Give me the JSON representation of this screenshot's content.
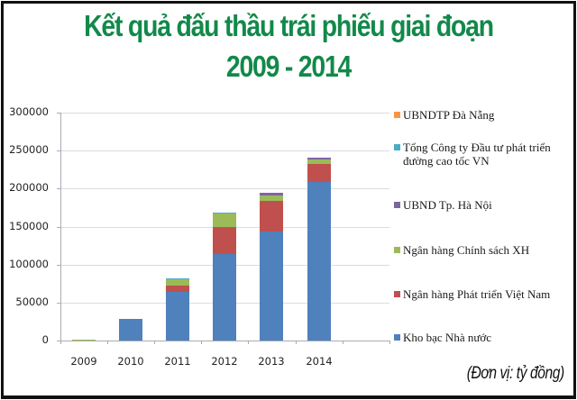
{
  "title": {
    "line1": "Kết quả đấu thầu trái phiếu giai đoạn",
    "line2": "2009 - 2014"
  },
  "unit_note": "(Đơn vị: tỷ đồng)",
  "colors": {
    "kho_bac": "#4f81bd",
    "ngan_hang_phat_trien": "#c0504d",
    "ngan_hang_chinh_sach": "#9bbb59",
    "ubnd_ha_noi": "#8064a2",
    "tong_cong_ty": "#4bacc6",
    "ubndtp_da_nang": "#f79646",
    "title": "#12894a"
  },
  "chart_data": {
    "type": "bar",
    "stacked": true,
    "title": "Kết quả đấu thầu trái phiếu giai đoạn 2009 - 2014",
    "xlabel": "",
    "ylabel": "",
    "unit": "tỷ đồng",
    "categories": [
      "2009",
      "2010",
      "2011",
      "2012",
      "2013",
      "2014"
    ],
    "ylim": [
      0,
      300000
    ],
    "yticks": [
      "0",
      "50000",
      "100000",
      "150000",
      "200000",
      "250000",
      "300000"
    ],
    "grid": true,
    "legend_position": "right",
    "series": [
      {
        "name": "Kho bạc Nhà nước",
        "color": "#4f81bd",
        "values": [
          0,
          28000,
          64000,
          114000,
          143500,
          208500
        ]
      },
      {
        "name": "Ngân hàng Phát triển Việt Nam",
        "color": "#c0504d",
        "values": [
          0,
          0,
          8500,
          35500,
          40000,
          23500
        ]
      },
      {
        "name": "Ngân hàng Chính sách XH",
        "color": "#9bbb59",
        "values": [
          1500,
          0,
          8500,
          17500,
          7000,
          6000
        ]
      },
      {
        "name": "UBND Tp. Hà Nội",
        "color": "#8064a2",
        "values": [
          0,
          0,
          0,
          0,
          3500,
          2500
        ]
      },
      {
        "name": "Tổng Công ty Đầu tư phát triển đường cao tốc VN",
        "color": "#4bacc6",
        "values": [
          0,
          0,
          500,
          1000,
          0,
          0
        ]
      },
      {
        "name": "UBNDTP Đà Nẵng",
        "color": "#f79646",
        "values": [
          0,
          0,
          0,
          0,
          0,
          0
        ]
      }
    ]
  },
  "legend": [
    {
      "label": "UBNDTP Đà Nẵng",
      "color": "#f79646"
    },
    {
      "label": "Tổng Công ty Đầu tư phát triển đường cao tốc VN",
      "color": "#4bacc6"
    },
    {
      "label": "UBND Tp. Hà Nội",
      "color": "#8064a2"
    },
    {
      "label": "Ngân hàng Chính sách XH",
      "color": "#9bbb59"
    },
    {
      "label": "Ngân hàng Phát triển Việt Nam",
      "color": "#c0504d"
    },
    {
      "label": "Kho bạc Nhà nước",
      "color": "#4f81bd"
    }
  ]
}
